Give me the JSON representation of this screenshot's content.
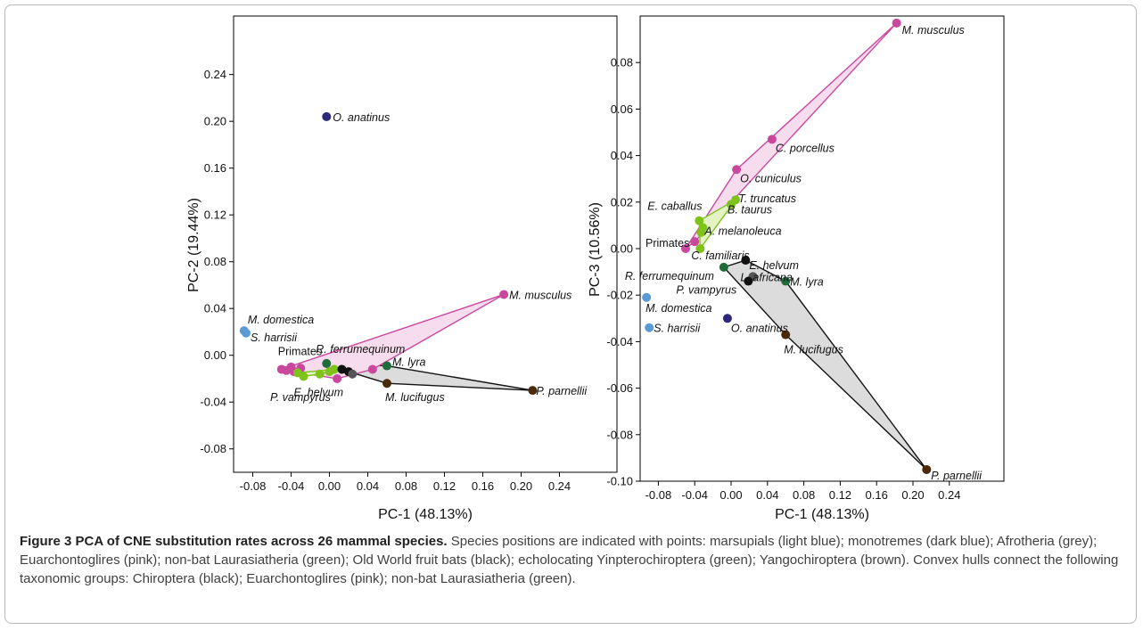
{
  "figure": {
    "caption_title": "Figure 3 PCA of CNE substitution rates across 26 mammal species.",
    "caption_body": " Species positions are indicated with points: marsupials (light blue); monotremes (dark blue); Afrotheria (grey); Euarchontoglires (pink); non-bat Laurasiatheria (green); Old World fruit bats (black); echolocating Yinpterochiroptera (green); Yangochiroptera (brown). Convex hulls connect the following taxonomic groups: Chiroptera (black); Euarchontoglires (pink); non-bat Laurasiatheria (green)."
  },
  "colors": {
    "marsupial": "#5b9bd5",
    "monotreme": "#2b2a7a",
    "euarchontoglires": "#c9489e",
    "laurasiatheria": "#7ec21a",
    "yinpterochiroptera": "#1f6b3a",
    "fruit_bats": "#111111",
    "yangochiroptera": "#4a2a08",
    "afrotheria": "#555555",
    "hull_pink_fill": "#f7dcee",
    "hull_grey_fill": "#dcdcdc",
    "hull_green_fill": "#e3f3c4"
  },
  "chart_data": [
    {
      "type": "scatter",
      "xlabel": "PC-1 (48.13%)",
      "ylabel": "PC-2 (19.44%)",
      "xlim": [
        -0.1,
        0.3
      ],
      "ylim": [
        -0.1,
        0.29
      ],
      "xticks": [
        -0.08,
        -0.04,
        0.0,
        0.04,
        0.08,
        0.12,
        0.16,
        0.2,
        0.24
      ],
      "yticks": [
        -0.08,
        -0.04,
        0.0,
        0.04,
        0.08,
        0.12,
        0.16,
        0.2,
        0.24
      ],
      "xtick_labels": [
        "-0.08",
        "-0.04",
        "0.00",
        "0.04",
        "0.08",
        "0.12",
        "0.16",
        "0.20",
        "0.24"
      ],
      "ytick_labels": [
        "-0.08",
        "-0.04",
        "0.00",
        "0.04",
        "0.08",
        "0.12",
        "0.16",
        "0.20",
        "0.24"
      ],
      "points": [
        {
          "label": "O. anatinus",
          "x": -0.003,
          "y": 0.204,
          "group": "monotreme"
        },
        {
          "label": "M. musculus",
          "x": 0.182,
          "y": 0.052,
          "group": "euarchontoglires"
        },
        {
          "label": "M. domestica",
          "x": -0.089,
          "y": 0.021,
          "group": "marsupial"
        },
        {
          "label": "S. harrisii",
          "x": -0.087,
          "y": 0.019,
          "group": "marsupial"
        },
        {
          "label": "Primates",
          "x": -0.05,
          "y": -0.012,
          "group": "euarchontoglires"
        },
        {
          "label": "",
          "x": -0.045,
          "y": -0.013,
          "group": "euarchontoglires"
        },
        {
          "label": "",
          "x": -0.04,
          "y": -0.01,
          "group": "euarchontoglires"
        },
        {
          "label": "",
          "x": -0.037,
          "y": -0.014,
          "group": "euarchontoglires"
        },
        {
          "label": "",
          "x": -0.03,
          "y": -0.011,
          "group": "euarchontoglires"
        },
        {
          "label": "",
          "x": 0.008,
          "y": -0.02,
          "group": "euarchontoglires"
        },
        {
          "label": "",
          "x": 0.045,
          "y": -0.012,
          "group": "euarchontoglires"
        },
        {
          "label": "",
          "x": -0.033,
          "y": -0.015,
          "group": "laurasiatheria"
        },
        {
          "label": "",
          "x": -0.027,
          "y": -0.018,
          "group": "laurasiatheria"
        },
        {
          "label": "",
          "x": -0.01,
          "y": -0.016,
          "group": "laurasiatheria"
        },
        {
          "label": "",
          "x": 0.0,
          "y": -0.014,
          "group": "laurasiatheria"
        },
        {
          "label": "",
          "x": 0.005,
          "y": -0.012,
          "group": "laurasiatheria"
        },
        {
          "label": "R. ferrumequinum",
          "x": -0.003,
          "y": -0.007,
          "group": "yinpterochiroptera"
        },
        {
          "label": "M. lyra",
          "x": 0.06,
          "y": -0.009,
          "group": "yinpterochiroptera"
        },
        {
          "label": "E. helvum",
          "x": 0.013,
          "y": -0.012,
          "group": "fruit_bats"
        },
        {
          "label": "P. vampyrus",
          "x": 0.02,
          "y": -0.014,
          "group": "fruit_bats"
        },
        {
          "label": "",
          "x": 0.024,
          "y": -0.016,
          "group": "afrotheria"
        },
        {
          "label": "M. lucifugus",
          "x": 0.06,
          "y": -0.024,
          "group": "yangochiroptera"
        },
        {
          "label": "P. parnellii",
          "x": 0.212,
          "y": -0.03,
          "group": "yangochiroptera"
        }
      ]
    },
    {
      "type": "scatter",
      "xlabel": "PC-1 (48.13%)",
      "ylabel": "PC-3 (10.56%)",
      "xlim": [
        -0.1,
        0.3
      ],
      "ylim": [
        -0.1,
        0.1
      ],
      "xticks": [
        -0.08,
        -0.04,
        0.0,
        0.04,
        0.08,
        0.12,
        0.16,
        0.2,
        0.24
      ],
      "yticks": [
        -0.1,
        -0.08,
        -0.06,
        -0.04,
        -0.02,
        0.0,
        0.02,
        0.04,
        0.06,
        0.08
      ],
      "xtick_labels": [
        "-0.08",
        "-0.04",
        "0.00",
        "0.04",
        "0.08",
        "0.12",
        "0.16",
        "0.20",
        "0.24"
      ],
      "ytick_labels": [
        "-0.10",
        "-0.08",
        "-0.06",
        "-0.04",
        "-0.02",
        "0.00",
        "0.02",
        "0.04",
        "0.06",
        "0.08"
      ],
      "points": [
        {
          "label": "M. musculus",
          "x": 0.182,
          "y": 0.097,
          "group": "euarchontoglires"
        },
        {
          "label": "C. porcellus",
          "x": 0.045,
          "y": 0.047,
          "group": "euarchontoglires"
        },
        {
          "label": "O. cuniculus",
          "x": 0.006,
          "y": 0.034,
          "group": "euarchontoglires"
        },
        {
          "label": "T. truncatus",
          "x": 0.005,
          "y": 0.021,
          "group": "laurasiatheria"
        },
        {
          "label": "B. taurus",
          "x": 0.0,
          "y": 0.019,
          "group": "laurasiatheria"
        },
        {
          "label": "E. caballus",
          "x": -0.035,
          "y": 0.012,
          "group": "laurasiatheria"
        },
        {
          "label": "A. melanoleuca",
          "x": -0.031,
          "y": 0.009,
          "group": "laurasiatheria"
        },
        {
          "label": "",
          "x": -0.033,
          "y": 0.007,
          "group": "laurasiatheria"
        },
        {
          "label": "Primates",
          "x": -0.05,
          "y": 0.0,
          "group": "euarchontoglires"
        },
        {
          "label": "",
          "x": -0.04,
          "y": 0.003,
          "group": "euarchontoglires"
        },
        {
          "label": "C. familiaris",
          "x": -0.034,
          "y": 0.0,
          "group": "laurasiatheria"
        },
        {
          "label": "E. helvum",
          "x": 0.016,
          "y": -0.005,
          "group": "fruit_bats"
        },
        {
          "label": "R. ferrumequinum",
          "x": -0.008,
          "y": -0.008,
          "group": "yinpterochiroptera"
        },
        {
          "label": "L. africana",
          "x": 0.024,
          "y": -0.012,
          "group": "afrotheria"
        },
        {
          "label": "P. vampyrus",
          "x": 0.019,
          "y": -0.014,
          "group": "fruit_bats"
        },
        {
          "label": "M. lyra",
          "x": 0.06,
          "y": -0.014,
          "group": "yinpterochiroptera"
        },
        {
          "label": "M. domestica",
          "x": -0.093,
          "y": -0.021,
          "group": "marsupial"
        },
        {
          "label": "O. anatinus",
          "x": -0.004,
          "y": -0.03,
          "group": "monotreme"
        },
        {
          "label": "S. harrisii",
          "x": -0.09,
          "y": -0.034,
          "group": "marsupial"
        },
        {
          "label": "M. lucifugus",
          "x": 0.06,
          "y": -0.037,
          "group": "yangochiroptera"
        },
        {
          "label": "P. parnellii",
          "x": 0.215,
          "y": -0.095,
          "group": "yangochiroptera"
        }
      ]
    }
  ]
}
